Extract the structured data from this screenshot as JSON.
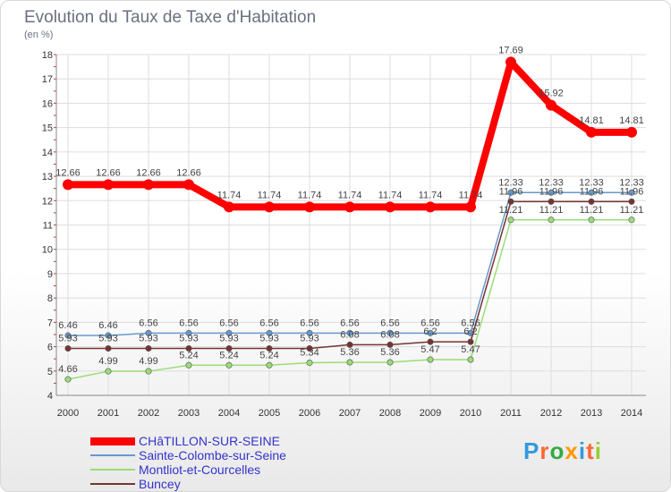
{
  "chart_data": {
    "type": "line",
    "title": "Evolution du Taux de Taxe d'Habitation",
    "subtitle": "(en %)",
    "x": [
      "2000",
      "2001",
      "2002",
      "2003",
      "2004",
      "2005",
      "2006",
      "2007",
      "2008",
      "2009",
      "2010",
      "2011",
      "2012",
      "2013",
      "2014"
    ],
    "ylim": [
      4,
      18
    ],
    "yticks": [
      "4",
      "5",
      "6",
      "7",
      "8",
      "9",
      "10",
      "11",
      "12",
      "13",
      "14",
      "15",
      "16",
      "17",
      "18"
    ],
    "grid": true,
    "legend_position": "bottom-left",
    "series": [
      {
        "name": "CHâTILLON-SUR-SEINE",
        "color": "#ff0000",
        "values": [
          12.66,
          12.66,
          12.66,
          12.66,
          11.74,
          11.74,
          11.74,
          11.74,
          11.74,
          11.74,
          11.74,
          17.69,
          15.92,
          14.81,
          14.81
        ],
        "labels": [
          "12.66",
          "12.66",
          "12.66",
          "12.66",
          "11.74",
          "11.74",
          "11.74",
          "11.74",
          "11.74",
          "11.74",
          "11.74",
          "17.69",
          "15.92",
          "14.81",
          "14.81"
        ]
      },
      {
        "name": "Sainte-Colombe-sur-Seine",
        "color": "#6699cc",
        "values": [
          6.46,
          6.46,
          6.56,
          6.56,
          6.56,
          6.56,
          6.56,
          6.56,
          6.56,
          6.56,
          6.56,
          12.33,
          12.33,
          12.33,
          12.33
        ],
        "labels": [
          "6.46",
          "6.46",
          "6.56",
          "6.56",
          "6.56",
          "6.56",
          "6.56",
          "6.56",
          "6.56",
          "6.56",
          "6.56",
          "12.33",
          "12.33",
          "12.33",
          "12.33"
        ]
      },
      {
        "name": "Montliot-et-Courcelles",
        "color": "#99dd77",
        "values": [
          4.66,
          4.99,
          4.99,
          5.24,
          5.24,
          5.24,
          5.34,
          5.36,
          5.36,
          5.47,
          5.47,
          11.21,
          11.21,
          11.21,
          11.21
        ],
        "labels": [
          "4.66",
          "4.99",
          "4.99",
          "5.24",
          "5.24",
          "5.24",
          "5.34",
          "5.36",
          "5.36",
          "5.47",
          "5.47",
          "11.21",
          "11.21",
          "11.21",
          "11.21"
        ]
      },
      {
        "name": "Buncey",
        "color": "#773333",
        "values": [
          5.93,
          5.93,
          5.93,
          5.93,
          5.93,
          5.93,
          5.93,
          6.08,
          6.08,
          6.2,
          6.2,
          11.96,
          11.96,
          11.96,
          11.96
        ],
        "labels": [
          "5.93",
          "5.93",
          "5.93",
          "5.93",
          "5.93",
          "5.93",
          "5.93",
          "6.08",
          "6.08",
          "6.2",
          "6.2",
          "11.96",
          "11.96",
          "11.96",
          "11.96"
        ]
      }
    ]
  },
  "logo": {
    "letters": [
      "P",
      "r",
      "o",
      "x",
      "i",
      "t",
      "i"
    ],
    "colors": [
      "#3399dd",
      "#ff6633",
      "#33aa44",
      "#ff9900",
      "#3399dd",
      "#ff6633",
      "#99cc33"
    ]
  }
}
